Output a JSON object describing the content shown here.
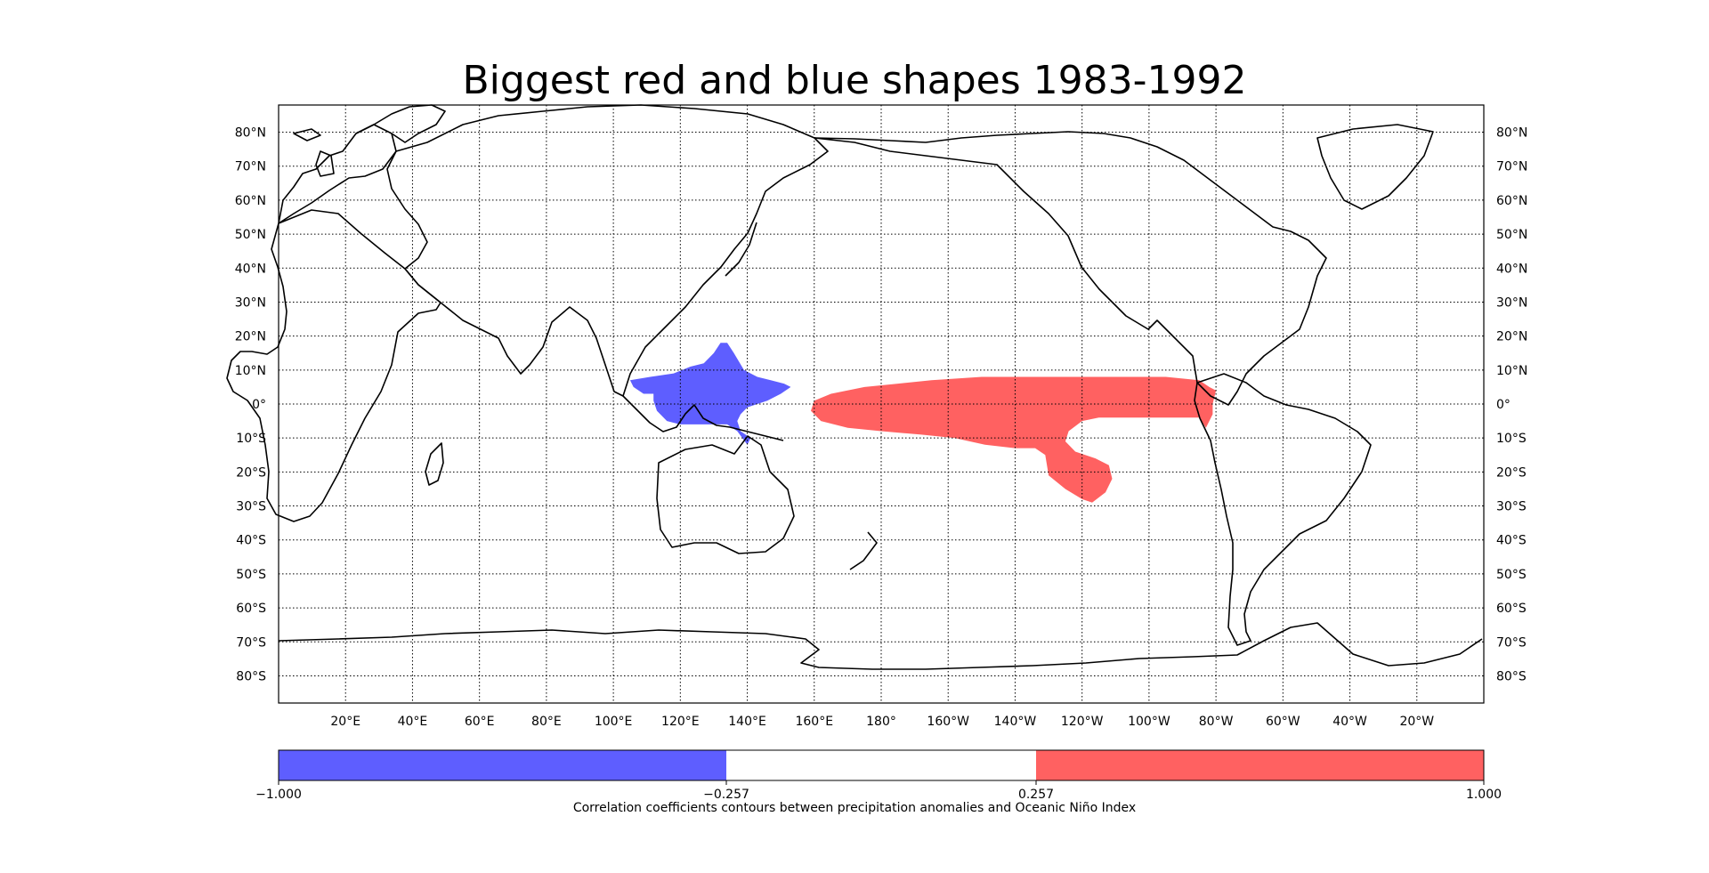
{
  "title": "Biggest red and blue shapes 1983-1992",
  "map": {
    "lon_range": [
      0,
      360
    ],
    "lat_range": [
      -88,
      88
    ],
    "lon_ticks": [
      {
        "lon": 20,
        "label": "20°E"
      },
      {
        "lon": 40,
        "label": "40°E"
      },
      {
        "lon": 60,
        "label": "60°E"
      },
      {
        "lon": 80,
        "label": "80°E"
      },
      {
        "lon": 100,
        "label": "100°E"
      },
      {
        "lon": 120,
        "label": "120°E"
      },
      {
        "lon": 140,
        "label": "140°E"
      },
      {
        "lon": 160,
        "label": "160°E"
      },
      {
        "lon": 180,
        "label": "180°"
      },
      {
        "lon": 200,
        "label": "160°W"
      },
      {
        "lon": 220,
        "label": "140°W"
      },
      {
        "lon": 240,
        "label": "120°W"
      },
      {
        "lon": 260,
        "label": "100°W"
      },
      {
        "lon": 280,
        "label": "80°W"
      },
      {
        "lon": 300,
        "label": "60°W"
      },
      {
        "lon": 320,
        "label": "40°W"
      },
      {
        "lon": 340,
        "label": "20°W"
      }
    ],
    "lat_ticks": [
      {
        "lat": 80,
        "label": "80°N"
      },
      {
        "lat": 70,
        "label": "70°N"
      },
      {
        "lat": 60,
        "label": "60°N"
      },
      {
        "lat": 50,
        "label": "50°N"
      },
      {
        "lat": 40,
        "label": "40°N"
      },
      {
        "lat": 30,
        "label": "30°N"
      },
      {
        "lat": 20,
        "label": "20°N"
      },
      {
        "lat": 10,
        "label": "10°N"
      },
      {
        "lat": 0,
        "label": "0°"
      },
      {
        "lat": -10,
        "label": "10°S"
      },
      {
        "lat": -20,
        "label": "20°S"
      },
      {
        "lat": -30,
        "label": "30°S"
      },
      {
        "lat": -40,
        "label": "40°S"
      },
      {
        "lat": -50,
        "label": "50°S"
      },
      {
        "lat": -60,
        "label": "60°S"
      },
      {
        "lat": -70,
        "label": "70°S"
      },
      {
        "lat": -80,
        "label": "80°S"
      }
    ],
    "regions": [
      {
        "sign": "negative",
        "color": "#5e5eff",
        "polygon": [
          [
            105,
            7
          ],
          [
            111,
            8
          ],
          [
            118,
            9
          ],
          [
            123,
            11
          ],
          [
            127,
            12
          ],
          [
            130,
            15
          ],
          [
            132,
            18
          ],
          [
            134,
            18
          ],
          [
            136,
            15
          ],
          [
            139,
            10
          ],
          [
            143,
            8
          ],
          [
            147,
            7
          ],
          [
            151,
            6
          ],
          [
            153,
            5
          ],
          [
            150,
            3
          ],
          [
            146,
            1
          ],
          [
            143,
            0
          ],
          [
            140,
            -1
          ],
          [
            138,
            -3
          ],
          [
            137,
            -5
          ],
          [
            138,
            -8
          ],
          [
            141,
            -10
          ],
          [
            140,
            -12
          ],
          [
            137,
            -8
          ],
          [
            134,
            -6
          ],
          [
            130,
            -6
          ],
          [
            125,
            -6
          ],
          [
            120,
            -6
          ],
          [
            116,
            -5
          ],
          [
            113,
            -2
          ],
          [
            112,
            1
          ],
          [
            112,
            3
          ],
          [
            109,
            3
          ],
          [
            106,
            5
          ]
        ]
      },
      {
        "sign": "positive",
        "color": "#ff6161",
        "polygon": [
          [
            160,
            1
          ],
          [
            165,
            3
          ],
          [
            175,
            5
          ],
          [
            185,
            6
          ],
          [
            195,
            7
          ],
          [
            210,
            8
          ],
          [
            230,
            8
          ],
          [
            250,
            8
          ],
          [
            265,
            8
          ],
          [
            275,
            7
          ],
          [
            278,
            5
          ],
          [
            280,
            4
          ],
          [
            279,
            0
          ],
          [
            279,
            -3
          ],
          [
            277,
            -7
          ],
          [
            275,
            -4
          ],
          [
            270,
            -4
          ],
          [
            260,
            -4
          ],
          [
            250,
            -4
          ],
          [
            245,
            -4
          ],
          [
            240,
            -5
          ],
          [
            236,
            -8
          ],
          [
            235,
            -11
          ],
          [
            238,
            -14
          ],
          [
            244,
            -16
          ],
          [
            248,
            -18
          ],
          [
            249,
            -22
          ],
          [
            247,
            -26
          ],
          [
            243,
            -29
          ],
          [
            240,
            -28
          ],
          [
            235,
            -25
          ],
          [
            230,
            -21
          ],
          [
            229,
            -15
          ],
          [
            226,
            -13
          ],
          [
            220,
            -13
          ],
          [
            211,
            -12
          ],
          [
            202,
            -10
          ],
          [
            192,
            -9
          ],
          [
            180,
            -8
          ],
          [
            170,
            -7
          ],
          [
            162,
            -5
          ],
          [
            159,
            -2
          ]
        ]
      }
    ]
  },
  "colorbar": {
    "min": -1.0,
    "max": 1.0,
    "segments": [
      {
        "from": -1.0,
        "to": -0.257,
        "color": "#5e5eff"
      },
      {
        "from": -0.257,
        "to": 0.257,
        "color": "#ffffff"
      },
      {
        "from": 0.257,
        "to": 1.0,
        "color": "#ff6161"
      }
    ],
    "tick_labels": [
      {
        "value": -1.0,
        "label": "−1.000"
      },
      {
        "value": -0.257,
        "label": "−0.257"
      },
      {
        "value": 0.257,
        "label": "0.257"
      },
      {
        "value": 1.0,
        "label": "1.000"
      }
    ],
    "caption": "Correlation coefficients contours between precipitation anomalies and Oceanic Niño Index"
  },
  "chart_data": {
    "type": "heatmap",
    "title": "Biggest red and blue shapes 1983-1992",
    "colorbar_range": [
      -1.0,
      1.0
    ],
    "thresholds": [
      -0.257,
      0.257
    ],
    "caption": "Correlation coefficients contours between precipitation anomalies and Oceanic Niño Index"
  }
}
